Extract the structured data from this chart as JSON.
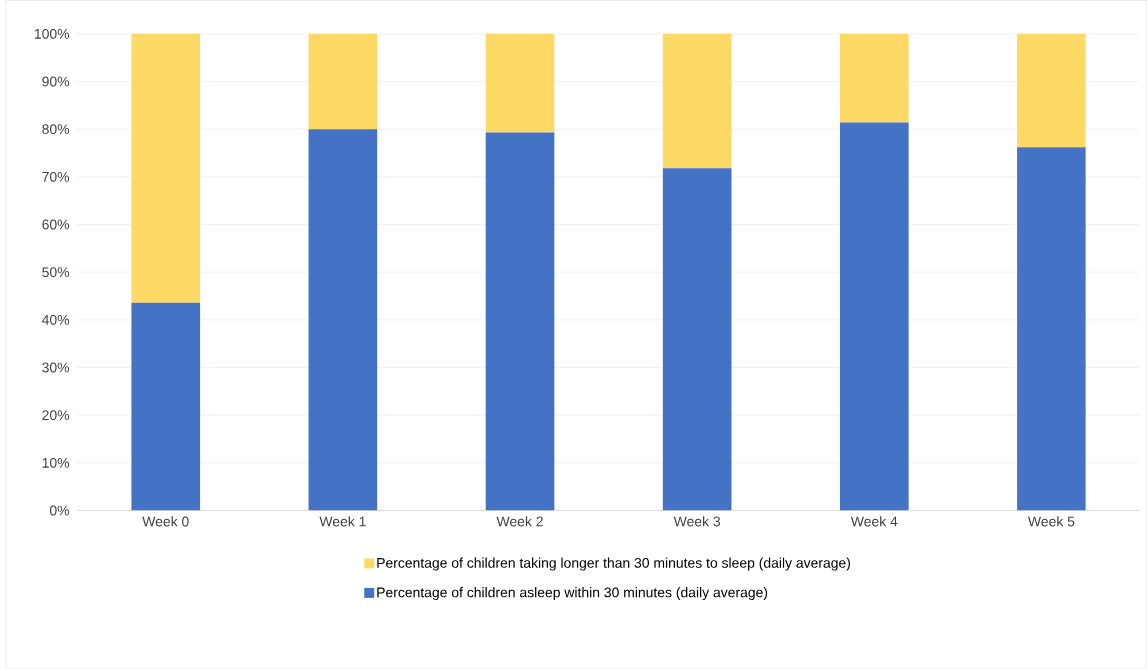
{
  "chart_data": {
    "type": "bar",
    "stacked": true,
    "categories": [
      "Week 0",
      "Week 1",
      "Week 2",
      "Week 3",
      "Week 4",
      "Week 5"
    ],
    "series": [
      {
        "name": "Percentage of children asleep within 30 minutes (daily average)",
        "color": "#4472c4",
        "values": [
          43.6,
          80.0,
          79.3,
          71.8,
          81.4,
          76.2
        ]
      },
      {
        "name": "Percentage of children taking longer than 30 minutes to sleep (daily average)",
        "color": "#ffd966",
        "values": [
          56.4,
          20.0,
          20.7,
          28.2,
          18.6,
          23.8
        ]
      }
    ],
    "ylim": [
      0,
      100
    ],
    "yticks": [
      {
        "value": 0,
        "label": "0%"
      },
      {
        "value": 10,
        "label": "10%"
      },
      {
        "value": 20,
        "label": "20%"
      },
      {
        "value": 30,
        "label": "30%"
      },
      {
        "value": 40,
        "label": "40%"
      },
      {
        "value": 50,
        "label": "50%"
      },
      {
        "value": 60,
        "label": "60%"
      },
      {
        "value": 70,
        "label": "70%"
      },
      {
        "value": 80,
        "label": "80%"
      },
      {
        "value": 90,
        "label": "90%"
      },
      {
        "value": 100,
        "label": "100%"
      }
    ],
    "grid": "y",
    "legend": "bottom"
  }
}
